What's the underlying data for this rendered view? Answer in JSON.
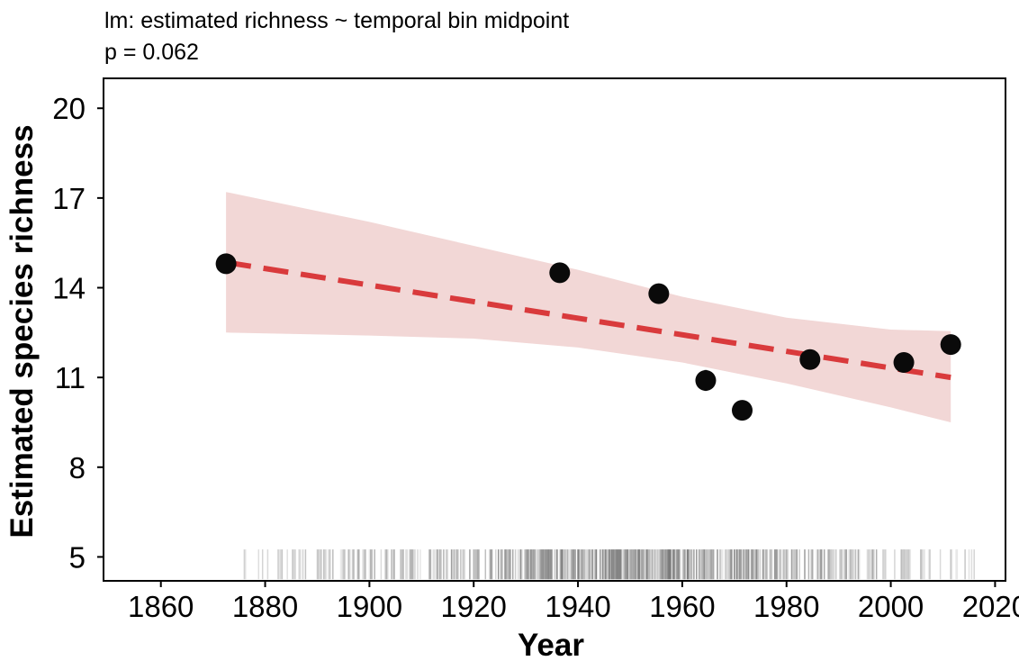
{
  "chart_data": {
    "type": "scatter",
    "title": "lm: estimated richness ~ temporal bin midpoint",
    "subtitle": "p = 0.062",
    "xlabel": "Year",
    "ylabel": "Estimated species richness",
    "xlim": [
      1849,
      2022
    ],
    "ylim": [
      4.2,
      21.0
    ],
    "xticks": [
      1860,
      1880,
      1900,
      1920,
      1940,
      1960,
      1980,
      2000,
      2020
    ],
    "yticks": [
      5,
      8,
      11,
      14,
      17,
      20
    ],
    "grid": false,
    "legend": "none",
    "points": [
      {
        "x": 1872.5,
        "y": 14.8,
        "err": 0.1
      },
      {
        "x": 1936.5,
        "y": 14.5,
        "err": 0.1
      },
      {
        "x": 1955.5,
        "y": 13.8,
        "err": 0.15
      },
      {
        "x": 1964.5,
        "y": 10.9,
        "err": 0.35
      },
      {
        "x": 1971.5,
        "y": 9.9,
        "err": 0.1
      },
      {
        "x": 1984.5,
        "y": 11.6,
        "err": 0.15
      },
      {
        "x": 2002.5,
        "y": 11.5,
        "err": 0.1
      },
      {
        "x": 2011.5,
        "y": 12.1,
        "err": 0.1
      }
    ],
    "fit": {
      "x": [
        1872.5,
        2011.5
      ],
      "y": [
        14.85,
        11.0
      ]
    },
    "confidence_band": {
      "x": [
        1872.5,
        1900,
        1920,
        1940,
        1960,
        1980,
        2000,
        2011.5
      ],
      "lower": [
        12.5,
        12.4,
        12.3,
        12.0,
        11.5,
        10.8,
        10.0,
        9.5
      ],
      "upper": [
        17.2,
        16.2,
        15.4,
        14.6,
        13.7,
        13.0,
        12.6,
        12.55
      ]
    },
    "rug": {
      "x_range": [
        1876,
        2016
      ],
      "y_range": [
        4.25,
        5.25
      ]
    },
    "colors": {
      "fit_line": "#d93a3c",
      "band": "#f2d7d6",
      "points": "#0a0a0a",
      "rug": "#000000"
    }
  }
}
